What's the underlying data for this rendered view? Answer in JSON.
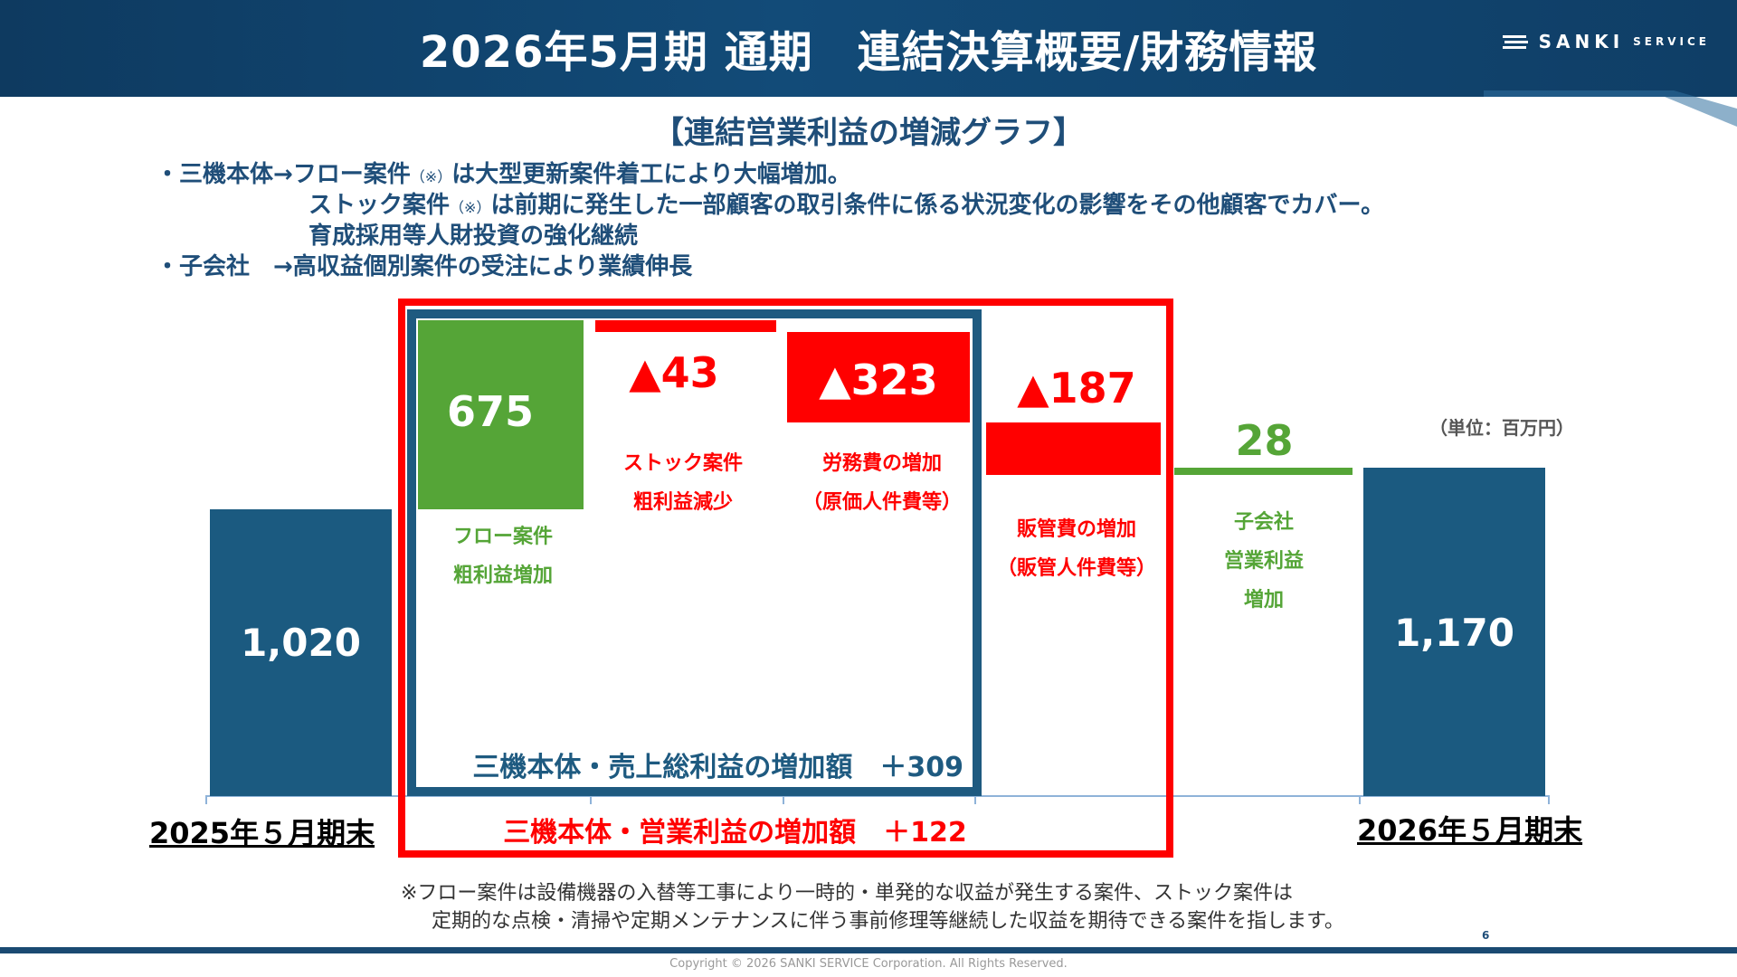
{
  "header": {
    "title": "2026年5月期 通期　連結決算概要/財務情報",
    "logo_main": "SANKI",
    "logo_sub": "SERVICE"
  },
  "subtitle": "【連結営業利益の増減グラフ】",
  "notes": {
    "line1_prefix": "・三機本体→フロー案件",
    "line1_mark": "（※）",
    "line1_text": "は大型更新案件着工により大幅増加。",
    "line2_prefix": "ストック案件",
    "line2_mark": "（※）",
    "line2_text": "は前期に発生した一部顧客の取引条件に係る状況変化の影響をその他顧客でカバー。",
    "line3": "育成採用等人財投資の強化継続",
    "line4": "・子会社　→高収益個別案件の受注により業績伸長"
  },
  "unit_label": "（単位：百万円）",
  "colors": {
    "navy": "#1b5a80",
    "green": "#55a537",
    "red": "#ff0000",
    "frame_blue": "#1e5a80"
  },
  "chart_data": {
    "type": "waterfall",
    "unit": "百万円",
    "steps": [
      {
        "id": "start",
        "value": 1020,
        "label": "1,020",
        "kind": "total",
        "caption": "2025年５月期末"
      },
      {
        "id": "flow",
        "value": 675,
        "label": "675",
        "kind": "increase",
        "caption_lines": [
          "フロー案件",
          "粗利益増加"
        ]
      },
      {
        "id": "stock",
        "value": -43,
        "label": "▲43",
        "kind": "decrease",
        "caption_lines": [
          "ストック案件",
          "粗利益減少"
        ]
      },
      {
        "id": "labor",
        "value": -323,
        "label": "▲323",
        "kind": "decrease",
        "caption_lines": [
          "労務費の増加",
          "（原価人件費等）"
        ]
      },
      {
        "id": "sga",
        "value": -187,
        "label": "▲187",
        "kind": "decrease",
        "caption_lines": [
          "販管費の増加",
          "（販管人件費等）"
        ]
      },
      {
        "id": "subsidiary",
        "value": 28,
        "label": "28",
        "kind": "increase",
        "caption_lines": [
          "子会社",
          "営業利益",
          "増加"
        ]
      },
      {
        "id": "end",
        "value": 1170,
        "label": "1,170",
        "kind": "total",
        "caption": "2026年５月期末"
      }
    ],
    "groups": {
      "gross_profit": "三機本体・売上総利益の増加額　＋309",
      "operating_profit": "三機本体・営業利益の増加額　＋122"
    }
  },
  "footnote": {
    "line1": "※フロー案件は設備機器の入替等工事により一時的・単発的な収益が発生する案件、ストック案件は",
    "line2": "定期的な点検・清掃や定期メンテナンスに伴う事前修理等継続した収益を期待できる案件を指します。"
  },
  "page_number": "6",
  "copyright": "Copyright © 2026 SANKI SERVICE Corporation. All Rights Reserved."
}
